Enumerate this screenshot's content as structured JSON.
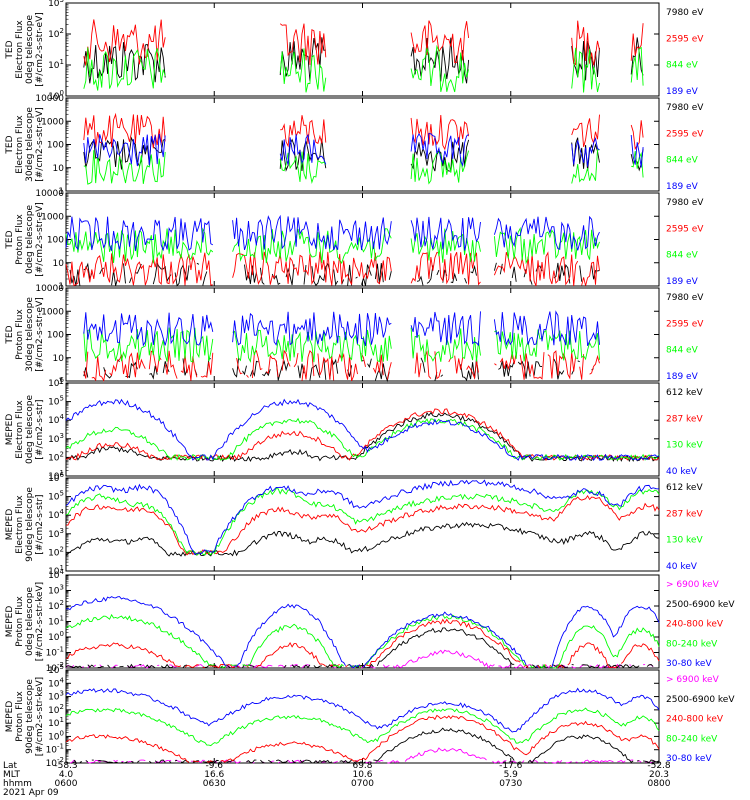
{
  "colors": {
    "black": "#000000",
    "red": "#ff0000",
    "green": "#00ff00",
    "blue": "#0000ff",
    "magenta": "#ff00ff",
    "axis": "#000000"
  },
  "chart_data": [
    {
      "type": "line",
      "panel": 1,
      "ylabel": [
        "TED",
        "Electron Flux",
        "0deg telescope",
        "[#/cm2-s-str-eV]"
      ],
      "scale": "log",
      "ylim": [
        1,
        1000
      ],
      "ytick_labels": [
        "10^0",
        "10^1",
        "10^2",
        "10^3"
      ],
      "series": [
        {
          "name": "7980 eV",
          "color": "#000000"
        },
        {
          "name": "2595 eV",
          "color": "#ff0000"
        },
        {
          "name": "844 eV",
          "color": "#00ff00"
        },
        {
          "name": "189 eV",
          "color": "#0000ff"
        }
      ],
      "active_windows": [
        [
          0.03,
          0.17
        ],
        [
          0.36,
          0.44
        ],
        [
          0.58,
          0.68
        ],
        [
          0.85,
          0.9
        ],
        [
          0.95,
          0.975
        ]
      ],
      "peaks": {
        "7980 eV": 80,
        "2595 eV": 300,
        "844 eV": 40,
        "189 eV": 0
      }
    },
    {
      "type": "line",
      "panel": 2,
      "ylabel": [
        "TED",
        "Electron Flux",
        "30deg telescope",
        "[#/cm2-s-str-eV]"
      ],
      "scale": "log",
      "ylim": [
        1,
        10000
      ],
      "ytick_labels": [
        "1",
        "10",
        "100",
        "1000",
        "10000"
      ],
      "series": [
        {
          "name": "7980 eV",
          "color": "#000000"
        },
        {
          "name": "2595 eV",
          "color": "#ff0000"
        },
        {
          "name": "844 eV",
          "color": "#00ff00"
        },
        {
          "name": "189 eV",
          "color": "#0000ff"
        }
      ],
      "active_windows": [
        [
          0.03,
          0.17
        ],
        [
          0.36,
          0.44
        ],
        [
          0.58,
          0.68
        ],
        [
          0.85,
          0.9
        ],
        [
          0.95,
          0.975
        ]
      ],
      "peaks": {
        "7980 eV": 200,
        "2595 eV": 2000,
        "844 eV": 60,
        "189 eV": 300
      }
    },
    {
      "type": "line",
      "panel": 3,
      "ylabel": [
        "TED",
        "Proton Flux",
        "0deg telescope",
        "[#/cm2-s-str-eV]"
      ],
      "scale": "log",
      "ylim": [
        1,
        10000
      ],
      "ytick_labels": [
        "1",
        "10",
        "100",
        "1000",
        "10000"
      ],
      "series": [
        {
          "name": "7980 eV",
          "color": "#000000"
        },
        {
          "name": "2595 eV",
          "color": "#ff0000"
        },
        {
          "name": "844 eV",
          "color": "#00ff00"
        },
        {
          "name": "189 eV",
          "color": "#0000ff"
        }
      ],
      "active_windows": [
        [
          0.0,
          0.25
        ],
        [
          0.28,
          0.55
        ],
        [
          0.58,
          0.7
        ],
        [
          0.72,
          0.9
        ]
      ],
      "peaks": {
        "7980 eV": 10,
        "2595 eV": 30,
        "844 eV": 300,
        "189 eV": 1000
      }
    },
    {
      "type": "line",
      "panel": 4,
      "ylabel": [
        "TED",
        "Proton Flux",
        "30deg telescope",
        "[#/cm2-s-str-eV]"
      ],
      "scale": "log",
      "ylim": [
        1,
        10000
      ],
      "ytick_labels": [
        "1",
        "10",
        "100",
        "1000",
        "10000"
      ],
      "series": [
        {
          "name": "7980 eV",
          "color": "#000000"
        },
        {
          "name": "2595 eV",
          "color": "#ff0000"
        },
        {
          "name": "844 eV",
          "color": "#00ff00"
        },
        {
          "name": "189 eV",
          "color": "#0000ff"
        }
      ],
      "active_windows": [
        [
          0.03,
          0.25
        ],
        [
          0.28,
          0.55
        ],
        [
          0.58,
          0.7
        ],
        [
          0.72,
          0.9
        ]
      ],
      "peaks": {
        "7980 eV": 10,
        "2595 eV": 20,
        "844 eV": 200,
        "189 eV": 1000
      }
    },
    {
      "type": "line",
      "panel": 5,
      "ylabel": [
        "MEPED",
        "Electron Flux",
        "0deg telescope",
        "[#/cm2-s-str]"
      ],
      "scale": "log",
      "ylim": [
        10,
        1000000
      ],
      "ytick_labels": [
        "10^1",
        "10^2",
        "10^3",
        "10^4",
        "10^5",
        "10^6"
      ],
      "series": [
        {
          "name": "612 keV",
          "color": "#000000"
        },
        {
          "name": "287 keV",
          "color": "#ff0000"
        },
        {
          "name": "130 keV",
          "color": "#00ff00"
        },
        {
          "name": "40 keV",
          "color": "#0000ff"
        }
      ],
      "background": 100,
      "bumps": [
        {
          "center": 0.08,
          "width": 0.05,
          "peaks": {
            "612 keV": 300,
            "287 keV": 500,
            "130 keV": 3000,
            "40 keV": 100000
          }
        },
        {
          "center": 0.38,
          "width": 0.05,
          "peaks": {
            "612 keV": 200,
            "287 keV": 2000,
            "130 keV": 10000,
            "40 keV": 100000
          }
        },
        {
          "center": 0.63,
          "width": 0.06,
          "peaks": {
            "612 keV": 20000,
            "287 keV": 30000,
            "130 keV": 10000,
            "40 keV": 8000
          }
        }
      ]
    },
    {
      "type": "line",
      "panel": 6,
      "ylabel": [
        "MEPED",
        "Electron Flux",
        "90deg telescope",
        "[#/cm2-s-str]"
      ],
      "scale": "log",
      "ylim": [
        10,
        1000000
      ],
      "ytick_labels": [
        "10^1",
        "10^2",
        "10^3",
        "10^4",
        "10^5",
        "10^6"
      ],
      "series": [
        {
          "name": "612 keV",
          "color": "#000000"
        },
        {
          "name": "287 keV",
          "color": "#ff0000"
        },
        {
          "name": "130 keV",
          "color": "#00ff00"
        },
        {
          "name": "40 keV",
          "color": "#0000ff"
        }
      ],
      "background": 100,
      "bumps": [
        {
          "center": 0.06,
          "width": 0.04,
          "peaks": {
            "612 keV": 500,
            "287 keV": 30000,
            "130 keV": 100000,
            "40 keV": 300000
          }
        },
        {
          "center": 0.13,
          "width": 0.03,
          "peaks": {
            "612 keV": 500,
            "287 keV": 20000,
            "130 keV": 30000,
            "40 keV": 300000
          }
        },
        {
          "center": 0.36,
          "width": 0.04,
          "peaks": {
            "612 keV": 1000,
            "287 keV": 20000,
            "130 keV": 200000,
            "40 keV": 300000
          }
        },
        {
          "center": 0.44,
          "width": 0.03,
          "peaks": {
            "612 keV": 500,
            "287 keV": 10000,
            "130 keV": 30000,
            "40 keV": 200000
          }
        },
        {
          "center": 0.68,
          "width": 0.1,
          "peaks": {
            "612 keV": 3000,
            "287 keV": 30000,
            "130 keV": 100000,
            "40 keV": 600000
          }
        },
        {
          "center": 0.88,
          "width": 0.03,
          "peaks": {
            "612 keV": 1000,
            "287 keV": 100000,
            "130 keV": 200000,
            "40 keV": 200000
          }
        },
        {
          "center": 0.98,
          "width": 0.03,
          "peaks": {
            "612 keV": 1000,
            "287 keV": 30000,
            "130 keV": 200000,
            "40 keV": 300000
          }
        }
      ]
    },
    {
      "type": "line",
      "panel": 7,
      "ylabel": [
        "MEPED",
        "Proton Flux",
        "0deg telescope",
        "[#/cm2-s-str-keV]"
      ],
      "scale": "log",
      "ylim": [
        0.01,
        10000
      ],
      "ytick_labels": [
        "10^-2",
        "10^-1",
        "10^0",
        "10^1",
        "10^2",
        "10^3",
        "10^4"
      ],
      "series": [
        {
          "name": "> 6900 keV",
          "color": "#ff00ff"
        },
        {
          "name": "2500-6900 keV",
          "color": "#000000"
        },
        {
          "name": "240-800 keV",
          "color": "#ff0000"
        },
        {
          "name": "80-240 keV",
          "color": "#00ff00"
        },
        {
          "name": "30-80 keV",
          "color": "#0000ff"
        }
      ],
      "bumps": [
        {
          "center": 0.08,
          "width": 0.06,
          "peaks": {
            "30-80 keV": 300,
            "80-240 keV": 20,
            "240-800 keV": 0.3,
            "2500-6900 keV": 0,
            "> 6900 keV": 0
          }
        },
        {
          "center": 0.38,
          "width": 0.03,
          "peaks": {
            "30-80 keV": 100,
            "80-240 keV": 5,
            "240-800 keV": 0.3,
            "2500-6900 keV": 0,
            "> 6900 keV": 0
          }
        },
        {
          "center": 0.64,
          "width": 0.05,
          "peaks": {
            "30-80 keV": 30,
            "80-240 keV": 20,
            "240-800 keV": 10,
            "2500-6900 keV": 3,
            "> 6900 keV": 0.1
          }
        },
        {
          "center": 0.88,
          "width": 0.02,
          "peaks": {
            "30-80 keV": 100,
            "80-240 keV": 5,
            "240-800 keV": 0.3,
            "2500-6900 keV": 0,
            "> 6900 keV": 0
          }
        },
        {
          "center": 0.97,
          "width": 0.02,
          "peaks": {
            "30-80 keV": 100,
            "80-240 keV": 3,
            "240-800 keV": 0.3,
            "2500-6900 keV": 0,
            "> 6900 keV": 0
          }
        }
      ]
    },
    {
      "type": "line",
      "panel": 8,
      "ylabel": [
        "MEPED",
        "Proton Flux",
        "90deg telescope",
        "[#/cm2-s-str-keV]"
      ],
      "scale": "log",
      "ylim": [
        0.01,
        100000
      ],
      "ytick_labels": [
        "10^-2",
        "10^-1",
        "10^0",
        "10^1",
        "10^2",
        "10^3",
        "10^4",
        "10^5"
      ],
      "series": [
        {
          "name": "> 6900 keV",
          "color": "#ff00ff"
        },
        {
          "name": "2500-6900 keV",
          "color": "#000000"
        },
        {
          "name": "240-800 keV",
          "color": "#ff0000"
        },
        {
          "name": "80-240 keV",
          "color": "#00ff00"
        },
        {
          "name": "30-80 keV",
          "color": "#0000ff"
        }
      ],
      "bumps": [
        {
          "center": 0.06,
          "width": 0.07,
          "peaks": {
            "30-80 keV": 3000,
            "80-240 keV": 100,
            "240-800 keV": 1,
            "2500-6900 keV": 0,
            "> 6900 keV": 0
          }
        },
        {
          "center": 0.38,
          "width": 0.06,
          "peaks": {
            "30-80 keV": 1000,
            "80-240 keV": 30,
            "240-800 keV": 0.3,
            "2500-6900 keV": 0,
            "> 6900 keV": 0
          }
        },
        {
          "center": 0.64,
          "width": 0.05,
          "peaks": {
            "30-80 keV": 300,
            "80-240 keV": 100,
            "240-800 keV": 30,
            "2500-6900 keV": 3,
            "> 6900 keV": 0.1
          }
        },
        {
          "center": 0.87,
          "width": 0.04,
          "peaks": {
            "30-80 keV": 3000,
            "80-240 keV": 100,
            "240-800 keV": 10,
            "2500-6900 keV": 1,
            "> 6900 keV": 0
          }
        },
        {
          "center": 0.97,
          "width": 0.02,
          "peaks": {
            "30-80 keV": 1000,
            "80-240 keV": 30,
            "240-800 keV": 1,
            "2500-6900 keV": 0,
            "> 6900 keV": 0
          }
        }
      ]
    }
  ],
  "xaxis": {
    "row_labels": [
      "Lat",
      "MLT",
      "hhmm",
      "2021 Apr 09"
    ],
    "ticks": [
      {
        "lat": "-58.3",
        "mlt": "4.0",
        "time": "0600"
      },
      {
        "lat": "-9.6",
        "mlt": "16.6",
        "time": "0630"
      },
      {
        "lat": "69.8",
        "mlt": "10.6",
        "time": "0700"
      },
      {
        "lat": "-17.6",
        "mlt": "5.9",
        "time": "0730"
      },
      {
        "lat": "-52.8",
        "mlt": "20.3",
        "time": "0800"
      }
    ]
  }
}
